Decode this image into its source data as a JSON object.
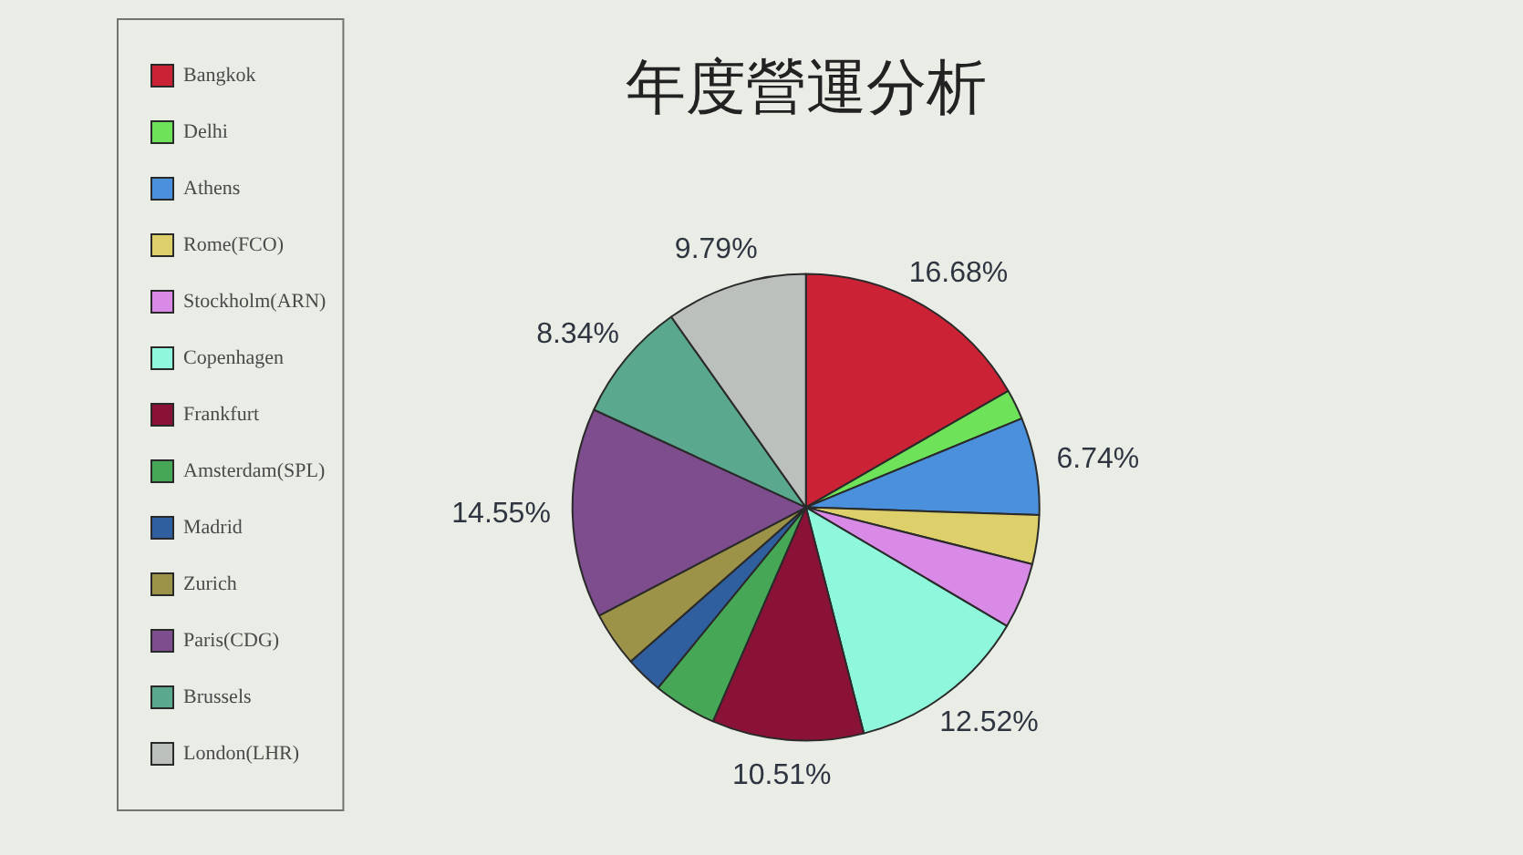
{
  "chart_data": {
    "type": "pie",
    "title": "年度營運分析",
    "categories": [
      "Bangkok",
      "Delhi",
      "Athens",
      "Rome(FCO)",
      "Stockholm(ARN)",
      "Copenhagen",
      "Frankfurt",
      "Amsterdam(SPL)",
      "Madrid",
      "Zurich",
      "Paris(CDG)",
      "Brussels",
      "London(LHR)"
    ],
    "values": [
      16.68,
      2.1,
      6.74,
      3.4,
      4.57,
      12.52,
      10.51,
      4.4,
      2.6,
      3.8,
      14.55,
      8.34,
      9.79
    ],
    "colors": [
      "#cc2236",
      "#6ee35a",
      "#4a90dc",
      "#ddd06a",
      "#d98ae6",
      "#8ff7dc",
      "#8a1236",
      "#46a857",
      "#2f5f9e",
      "#9c9248",
      "#7d4d8e",
      "#5aa88e",
      "#bcc0bc"
    ],
    "value_labels": [
      "16.68%",
      null,
      "6.74%",
      null,
      null,
      "12.52%",
      "10.51%",
      null,
      null,
      null,
      "14.55%",
      "8.34%",
      "9.79%"
    ],
    "legend": "left"
  }
}
